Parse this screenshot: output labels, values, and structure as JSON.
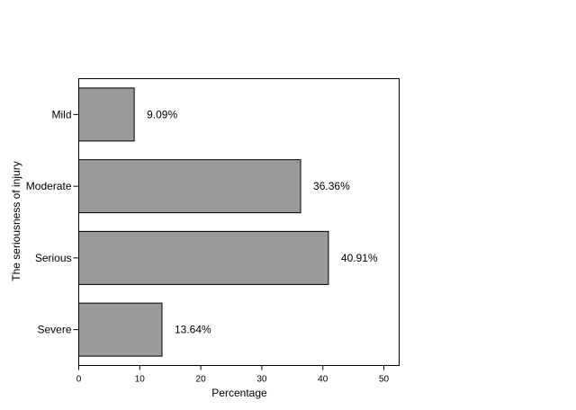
{
  "chart_data": {
    "type": "bar",
    "orientation": "horizontal",
    "categories": [
      "Mild",
      "Moderate",
      "Serious",
      "Severe"
    ],
    "values": [
      9.09,
      36.36,
      40.91,
      13.64
    ],
    "data_labels": [
      "9.09%",
      "36.36%",
      "40.91%",
      "13.64%"
    ],
    "xlabel": "Percentage",
    "ylabel": "The seriousness of injury",
    "xlim": [
      0,
      52.5
    ],
    "xticks": [
      0,
      10,
      20,
      30,
      40,
      50
    ],
    "grid": false,
    "colors": {
      "bar_fill": "#9a9a9a",
      "bar_stroke": "#000000"
    }
  }
}
